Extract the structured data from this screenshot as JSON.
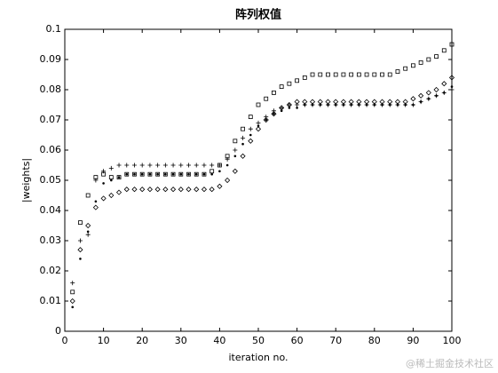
{
  "chart_data": {
    "type": "scatter",
    "title": "阵列权值",
    "xlabel": "iteration no.",
    "ylabel": "|weights|",
    "x": [
      2,
      4,
      6,
      8,
      10,
      12,
      14,
      16,
      18,
      20,
      22,
      24,
      26,
      28,
      30,
      32,
      34,
      36,
      38,
      40,
      42,
      44,
      46,
      48,
      50,
      52,
      54,
      56,
      58,
      60,
      62,
      64,
      66,
      68,
      70,
      72,
      74,
      76,
      78,
      80,
      82,
      84,
      86,
      88,
      90,
      92,
      94,
      96,
      98,
      100
    ],
    "series": [
      {
        "marker": "square",
        "color": "#000000",
        "values": [
          0.013,
          0.036,
          0.045,
          0.051,
          0.052,
          0.051,
          0.051,
          0.052,
          0.052,
          0.052,
          0.052,
          0.052,
          0.052,
          0.052,
          0.052,
          0.052,
          0.052,
          0.052,
          0.053,
          0.055,
          0.058,
          0.063,
          0.067,
          0.071,
          0.075,
          0.077,
          0.079,
          0.081,
          0.082,
          0.083,
          0.084,
          0.085,
          0.085,
          0.085,
          0.085,
          0.085,
          0.085,
          0.085,
          0.085,
          0.085,
          0.085,
          0.085,
          0.086,
          0.087,
          0.088,
          0.089,
          0.09,
          0.091,
          0.093,
          0.095
        ]
      },
      {
        "marker": "plus",
        "color": "#000000",
        "values": [
          0.016,
          0.03,
          0.032,
          0.05,
          0.053,
          0.054,
          0.055,
          0.055,
          0.055,
          0.055,
          0.055,
          0.055,
          0.055,
          0.055,
          0.055,
          0.055,
          0.055,
          0.055,
          0.055,
          0.055,
          0.057,
          0.06,
          0.064,
          0.067,
          0.069,
          0.071,
          0.073,
          0.074,
          0.075,
          0.075,
          0.075,
          0.075,
          0.075,
          0.075,
          0.075,
          0.075,
          0.075,
          0.075,
          0.075,
          0.075,
          0.075,
          0.075,
          0.075,
          0.075,
          0.075,
          0.076,
          0.077,
          0.078,
          0.079,
          0.08
        ]
      },
      {
        "marker": "diamond",
        "color": "#000000",
        "values": [
          0.01,
          0.027,
          0.035,
          0.041,
          0.044,
          0.045,
          0.046,
          0.047,
          0.047,
          0.047,
          0.047,
          0.047,
          0.047,
          0.047,
          0.047,
          0.047,
          0.047,
          0.047,
          0.047,
          0.048,
          0.05,
          0.053,
          0.058,
          0.063,
          0.067,
          0.07,
          0.072,
          0.074,
          0.075,
          0.076,
          0.076,
          0.076,
          0.076,
          0.076,
          0.076,
          0.076,
          0.076,
          0.076,
          0.076,
          0.076,
          0.076,
          0.076,
          0.076,
          0.076,
          0.077,
          0.078,
          0.079,
          0.08,
          0.082,
          0.084
        ]
      },
      {
        "marker": "point",
        "color": "#000000",
        "values": [
          0.008,
          0.024,
          0.033,
          0.043,
          0.049,
          0.05,
          0.051,
          0.052,
          0.052,
          0.052,
          0.052,
          0.052,
          0.052,
          0.052,
          0.052,
          0.052,
          0.052,
          0.052,
          0.052,
          0.053,
          0.055,
          0.058,
          0.062,
          0.065,
          0.068,
          0.07,
          0.072,
          0.073,
          0.074,
          0.074,
          0.075,
          0.075,
          0.075,
          0.075,
          0.075,
          0.075,
          0.075,
          0.075,
          0.075,
          0.075,
          0.075,
          0.075,
          0.075,
          0.075,
          0.075,
          0.076,
          0.077,
          0.078,
          0.079,
          0.081
        ]
      }
    ],
    "xlim": [
      0,
      100
    ],
    "xticks": [
      0,
      10,
      20,
      30,
      40,
      50,
      60,
      70,
      80,
      90,
      100
    ],
    "ylim": [
      0,
      0.1
    ],
    "yticks": [
      0,
      0.01,
      0.02,
      0.03,
      0.04,
      0.05,
      0.06,
      0.07,
      0.08,
      0.09,
      0.1
    ],
    "grid": false
  },
  "watermark": "@稀土掘金技术社区"
}
